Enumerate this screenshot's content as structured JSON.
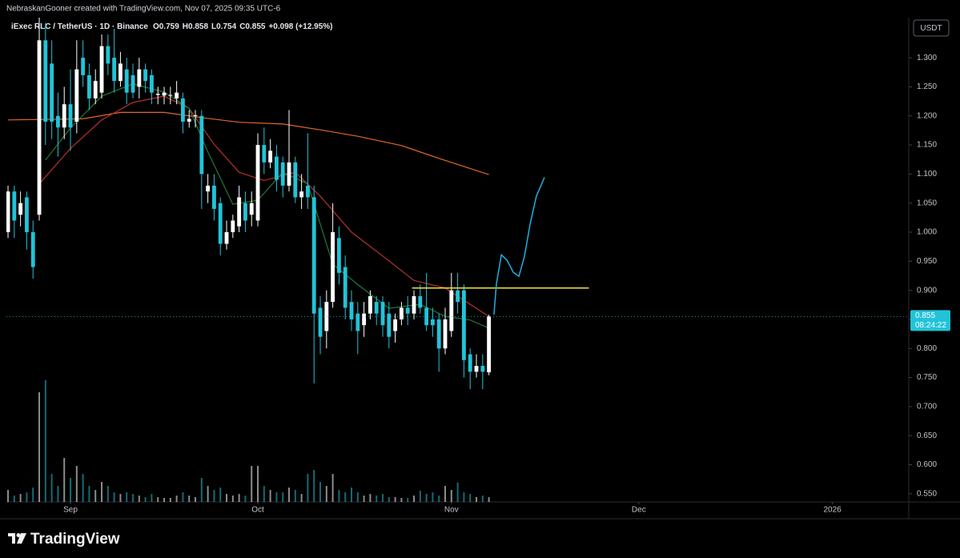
{
  "header": {
    "attribution": "NebraskanGooner created with TradingView.com, Nov 07, 2025 09:35 UTC-6"
  },
  "chart_data": {
    "type": "candlestick",
    "symbol": "iExec RLC / TetherUS · 1D · Binance",
    "ohlc_legend": [
      {
        "label": "O",
        "value": "0.759"
      },
      {
        "label": "H",
        "value": "0.858"
      },
      {
        "label": "L",
        "value": "0.754"
      },
      {
        "label": "C",
        "value": "0.855"
      }
    ],
    "change": "+0.098 (+12.95%)",
    "currency": "USDT",
    "price_tag": {
      "price": "0.855",
      "countdown": "08:24:22"
    },
    "up_color": "#ffffff",
    "down_color": "#22c3d8",
    "x": [
      0,
      1,
      2,
      3,
      4,
      5,
      6,
      7,
      8,
      9,
      10,
      11,
      12,
      13,
      14,
      15,
      16,
      17,
      18,
      19,
      20,
      21,
      22,
      23,
      24,
      25,
      26,
      27,
      28,
      29,
      30,
      31,
      32,
      33,
      34,
      35,
      36,
      37,
      38,
      39,
      40,
      41,
      42,
      43,
      44,
      45,
      46,
      47,
      48,
      49,
      50,
      51,
      52,
      53,
      54,
      55,
      56,
      57,
      58,
      59,
      60,
      61,
      62,
      63,
      64,
      65,
      66,
      67,
      68,
      69,
      70,
      71,
      72,
      73,
      74,
      75,
      76,
      77
    ],
    "open": [
      1.0,
      1.07,
      1.03,
      1.06,
      1.0,
      1.03,
      1.33,
      1.29,
      1.2,
      1.18,
      1.22,
      1.19,
      1.3,
      1.27,
      1.23,
      1.24,
      1.32,
      1.3,
      1.26,
      1.28,
      1.27,
      1.25,
      1.28,
      1.27,
      1.236,
      1.235,
      1.235,
      1.23,
      1.23,
      1.19,
      1.2,
      1.2,
      1.07,
      1.08,
      1.05,
      0.98,
      1.0,
      1.01,
      1.05,
      1.03,
      1.02,
      1.15,
      1.12,
      1.13,
      1.12,
      1.08,
      1.12,
      1.06,
      1.08,
      1.06,
      0.87,
      0.83,
      0.88,
      0.99,
      0.94,
      0.88,
      0.86,
      0.84,
      0.86,
      0.88,
      0.88,
      0.86,
      0.83,
      0.85,
      0.87,
      0.86,
      0.89,
      0.87,
      0.85,
      0.85,
      0.8,
      0.83,
      0.9,
      0.9,
      0.79,
      0.76,
      0.77,
      0.759
    ],
    "high": [
      1.08,
      1.08,
      1.07,
      1.07,
      1.02,
      1.37,
      1.36,
      1.33,
      1.24,
      1.25,
      1.28,
      1.33,
      1.33,
      1.29,
      1.28,
      1.34,
      1.34,
      1.35,
      1.31,
      1.3,
      1.29,
      1.3,
      1.29,
      1.28,
      1.25,
      1.25,
      1.25,
      1.26,
      1.24,
      1.21,
      1.21,
      1.21,
      1.1,
      1.1,
      1.06,
      1.02,
      1.03,
      1.08,
      1.07,
      1.07,
      1.17,
      1.18,
      1.16,
      1.15,
      1.13,
      1.21,
      1.13,
      1.1,
      1.17,
      1.08,
      0.89,
      0.9,
      1.05,
      1.01,
      0.96,
      0.9,
      0.88,
      0.88,
      0.9,
      0.89,
      0.89,
      0.88,
      0.86,
      0.88,
      0.89,
      0.9,
      0.91,
      0.93,
      0.87,
      0.86,
      0.87,
      0.93,
      0.93,
      0.91,
      0.8,
      0.79,
      0.79,
      0.858
    ],
    "low": [
      0.99,
      0.99,
      1.01,
      0.97,
      0.92,
      1.02,
      1.15,
      1.16,
      1.13,
      1.16,
      1.14,
      1.17,
      1.25,
      1.21,
      1.22,
      1.23,
      1.27,
      1.24,
      1.25,
      1.22,
      1.23,
      1.23,
      1.24,
      1.22,
      1.22,
      1.22,
      1.22,
      1.22,
      1.17,
      1.18,
      1.18,
      1.04,
      1.05,
      1.02,
      0.96,
      0.97,
      0.99,
      1.0,
      1.0,
      1.01,
      1.01,
      1.1,
      1.11,
      1.07,
      1.06,
      1.07,
      1.05,
      1.04,
      1.04,
      0.74,
      0.79,
      0.8,
      0.87,
      0.91,
      0.85,
      0.83,
      0.79,
      0.82,
      0.85,
      0.84,
      0.82,
      0.8,
      0.81,
      0.84,
      0.84,
      0.85,
      0.86,
      0.83,
      0.82,
      0.76,
      0.79,
      0.82,
      0.86,
      0.75,
      0.73,
      0.75,
      0.73,
      0.754
    ],
    "close": [
      1.07,
      1.02,
      1.05,
      1.0,
      0.94,
      1.33,
      1.19,
      1.19,
      1.18,
      1.22,
      1.18,
      1.28,
      1.27,
      1.23,
      1.26,
      1.32,
      1.29,
      1.26,
      1.29,
      1.24,
      1.24,
      1.28,
      1.26,
      1.24,
      1.238,
      1.24,
      1.236,
      1.24,
      1.19,
      1.195,
      1.201,
      1.1,
      1.08,
      1.04,
      0.98,
      1.0,
      1.02,
      1.06,
      1.02,
      1.05,
      1.15,
      1.12,
      1.14,
      1.09,
      1.08,
      1.12,
      1.06,
      1.07,
      1.06,
      0.86,
      0.82,
      0.88,
      1.0,
      0.93,
      0.87,
      0.85,
      0.83,
      0.86,
      0.89,
      0.86,
      0.84,
      0.82,
      0.85,
      0.87,
      0.86,
      0.89,
      0.87,
      0.84,
      0.84,
      0.8,
      0.85,
      0.9,
      0.88,
      0.78,
      0.76,
      0.77,
      0.76,
      0.855
    ],
    "volume": [
      15,
      8,
      10,
      12,
      18,
      137,
      152,
      35,
      20,
      55,
      30,
      45,
      35,
      20,
      15,
      25,
      20,
      12,
      10,
      12,
      10,
      8,
      6,
      10,
      6,
      5,
      5,
      8,
      12,
      8,
      6,
      30,
      20,
      15,
      18,
      10,
      8,
      10,
      8,
      45,
      45,
      20,
      15,
      12,
      12,
      18,
      15,
      10,
      35,
      40,
      25,
      20,
      35,
      15,
      12,
      18,
      12,
      8,
      10,
      8,
      10,
      6,
      6,
      5,
      5,
      8,
      14,
      10,
      12,
      8,
      20,
      15,
      24,
      12,
      10,
      6,
      8,
      6
    ],
    "volume_range": [
      0,
      160
    ],
    "lines": [
      {
        "color": "#e0672a",
        "x": [
          0,
          12,
          18,
          25,
          31,
          37,
          44,
          50,
          56,
          63,
          69,
          73,
          77
        ],
        "values": [
          1.193,
          1.195,
          1.206,
          1.206,
          1.197,
          1.189,
          1.186,
          1.176,
          1.165,
          1.149,
          1.127,
          1.113,
          1.099
        ]
      },
      {
        "color": "#b8302e",
        "x": [
          5,
          10,
          15,
          20,
          25,
          29,
          33,
          37,
          41,
          46,
          50,
          55,
          60,
          65,
          70,
          74,
          77
        ],
        "values": [
          1.083,
          1.144,
          1.193,
          1.223,
          1.234,
          1.213,
          1.151,
          1.103,
          1.089,
          1.103,
          1.062,
          1.0,
          0.959,
          0.917,
          0.904,
          0.876,
          0.855
        ]
      },
      {
        "color": "#1f7a3a",
        "x": [
          6,
          10,
          15,
          20,
          25,
          29,
          32,
          36,
          40,
          44,
          48,
          52,
          56,
          61,
          66,
          70,
          74,
          77
        ],
        "values": [
          1.124,
          1.179,
          1.234,
          1.255,
          1.241,
          1.213,
          1.138,
          1.048,
          1.055,
          1.103,
          1.083,
          0.945,
          0.91,
          0.869,
          0.876,
          0.855,
          0.849,
          0.835
        ]
      }
    ],
    "drawings": [
      {
        "color": "#f3e23b",
        "x": [
          64.7,
          93
        ],
        "values": [
          0.904,
          0.904
        ]
      },
      {
        "color": "#1fb0e0",
        "x": [
          77.8,
          78.2,
          79.0,
          79.9,
          80.9,
          81.8,
          82.7,
          83.6,
          84.6,
          85.9
        ],
        "values": [
          0.858,
          0.911,
          0.961,
          0.952,
          0.931,
          0.924,
          0.959,
          1.014,
          1.062,
          1.094
        ]
      }
    ],
    "xlim": [
      -0.26,
      144.23
    ],
    "xticks": [
      {
        "value": 10,
        "label": "Sep"
      },
      {
        "value": 40,
        "label": "Oct"
      },
      {
        "value": 71,
        "label": "Nov"
      },
      {
        "value": 101,
        "label": "Dec"
      },
      {
        "value": 132,
        "label": "2026"
      }
    ],
    "ylim": [
      0.536,
      1.358
    ],
    "yticks": [
      {
        "value": 0.55,
        "label": "0.550"
      },
      {
        "value": 0.6,
        "label": "0.600"
      },
      {
        "value": 0.65,
        "label": "0.650"
      },
      {
        "value": 0.7,
        "label": "0.700"
      },
      {
        "value": 0.75,
        "label": "0.750"
      },
      {
        "value": 0.8,
        "label": "0.800"
      },
      {
        "value": 0.85,
        "label": "0.850"
      },
      {
        "value": 0.9,
        "label": "0.900"
      },
      {
        "value": 0.95,
        "label": "0.950"
      },
      {
        "value": 1.0,
        "label": "1.000"
      },
      {
        "value": 1.05,
        "label": "1.050"
      },
      {
        "value": 1.1,
        "label": "1.100"
      },
      {
        "value": 1.15,
        "label": "1.150"
      },
      {
        "value": 1.2,
        "label": "1.200"
      },
      {
        "value": 1.25,
        "label": "1.250"
      },
      {
        "value": 1.3,
        "label": "1.300"
      }
    ],
    "grid": false
  },
  "footer": {
    "brand": "TradingView"
  }
}
